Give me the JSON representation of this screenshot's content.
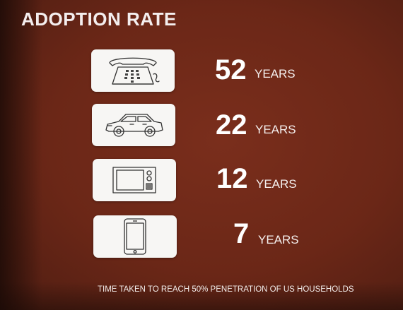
{
  "slide": {
    "title": "ADOPTION RATE",
    "rows": [
      {
        "icon": "telephone-icon",
        "value": "52",
        "unit": "YEARS"
      },
      {
        "icon": "car-icon",
        "value": "22",
        "unit": "YEARS"
      },
      {
        "icon": "television-icon",
        "value": "12",
        "unit": "YEARS"
      },
      {
        "icon": "smartphone-icon",
        "value": "7",
        "unit": "YEARS"
      }
    ],
    "footnote": "TIME TAKEN TO REACH 50% PENETRATION OF US HOUSEHOLDS"
  },
  "colors": {
    "background": "#6b2717",
    "card": "#f7f6f4",
    "text": "#ffffff"
  }
}
